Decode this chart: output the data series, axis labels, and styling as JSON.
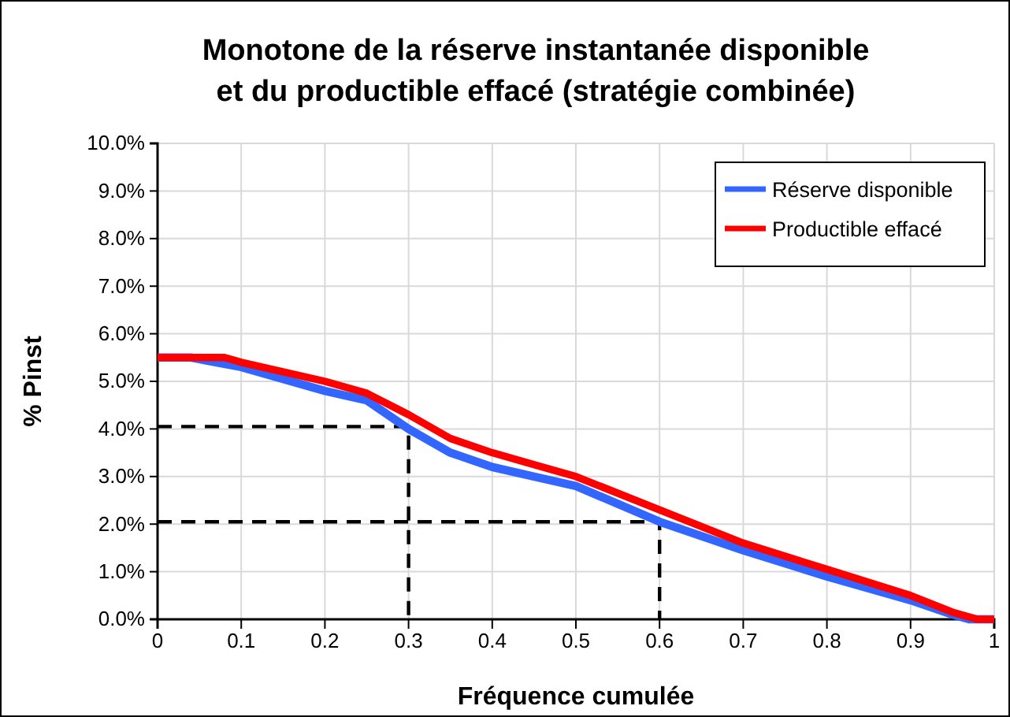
{
  "chart_data": {
    "type": "line",
    "title": "Monotone de la réserve instantanée disponible\net du productible effacé (stratégie combinée)",
    "xlabel": "Fréquence cumulée",
    "ylabel": "% Pinst",
    "xlim": [
      0,
      1
    ],
    "xticks": [
      0,
      0.1,
      0.2,
      0.3,
      0.4,
      0.5,
      0.6,
      0.7,
      0.8,
      0.9,
      1
    ],
    "ylim": [
      0,
      10
    ],
    "yticks": [
      {
        "value": 0,
        "label": "0.0%"
      },
      {
        "value": 1,
        "label": "1.0%"
      },
      {
        "value": 2,
        "label": "2.0%"
      },
      {
        "value": 3,
        "label": "3.0%"
      },
      {
        "value": 4,
        "label": "4.0%"
      },
      {
        "value": 5,
        "label": "5.0%"
      },
      {
        "value": 6,
        "label": "6.0%"
      },
      {
        "value": 7,
        "label": "7.0%"
      },
      {
        "value": 8,
        "label": "8.0%"
      },
      {
        "value": 9,
        "label": "9.0%"
      },
      {
        "value": 10,
        "label": "10.0%"
      }
    ],
    "grid": true,
    "legend": "top right",
    "marker": "none",
    "series": [
      {
        "name": "Réserve disponible",
        "color": "#3366ff",
        "line_style": "solid",
        "x": [
          0,
          0.04,
          0.1,
          0.2,
          0.25,
          0.3,
          0.35,
          0.4,
          0.45,
          0.5,
          0.6,
          0.7,
          0.8,
          0.9,
          0.95,
          0.97,
          1
        ],
        "values": [
          5.5,
          5.5,
          5.3,
          4.8,
          4.6,
          4.0,
          3.5,
          3.2,
          3.0,
          2.8,
          2.05,
          1.45,
          0.9,
          0.4,
          0.1,
          0,
          0
        ]
      },
      {
        "name": "Productible effacé",
        "color": "#ff0000",
        "line_style": "solid",
        "x": [
          0,
          0.08,
          0.1,
          0.2,
          0.25,
          0.3,
          0.35,
          0.4,
          0.45,
          0.5,
          0.6,
          0.7,
          0.8,
          0.9,
          0.95,
          0.98,
          1
        ],
        "values": [
          5.5,
          5.5,
          5.4,
          5.0,
          4.75,
          4.3,
          3.8,
          3.5,
          3.25,
          3.0,
          2.3,
          1.6,
          1.05,
          0.5,
          0.15,
          0,
          0
        ]
      },
      {
        "color": "#000000",
        "line_style": "dashed",
        "x": [
          0,
          0.3,
          0.3
        ],
        "values": [
          4.05,
          4.05,
          0
        ]
      },
      {
        "color": "#000000",
        "line_style": "dashed",
        "x": [
          0,
          0.6,
          0.6
        ],
        "values": [
          2.05,
          2.05,
          0
        ]
      }
    ]
  }
}
